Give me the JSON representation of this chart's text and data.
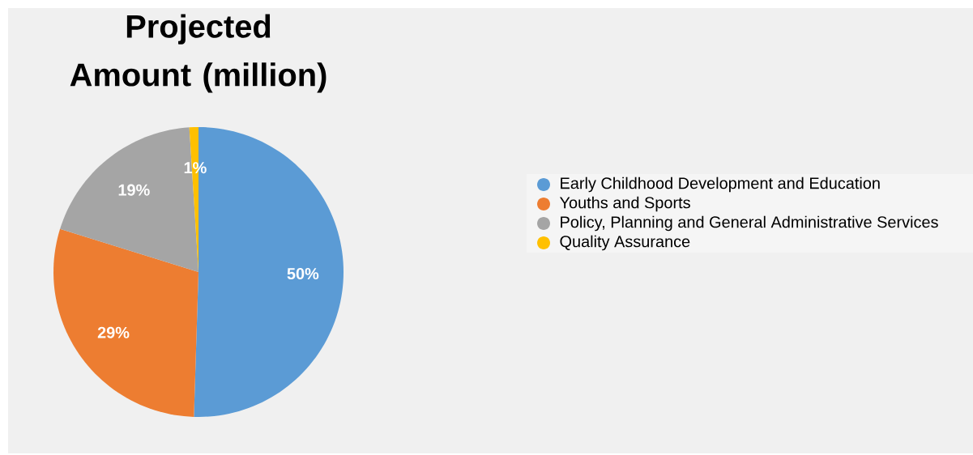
{
  "chart_data": {
    "type": "pie",
    "title": "Projected Amount (million)",
    "categories": [
      "Early Childhood Development and Education",
      "Youths and Sports",
      "Policy, Planning and General Administrative Services",
      "Quality Assurance"
    ],
    "values": [
      50,
      29,
      19,
      1
    ],
    "value_labels": [
      "50%",
      "29%",
      "19%",
      "1%"
    ],
    "colors": [
      "#5b9bd5",
      "#ed7d31",
      "#a5a5a5",
      "#ffc000"
    ],
    "legend": "right"
  }
}
